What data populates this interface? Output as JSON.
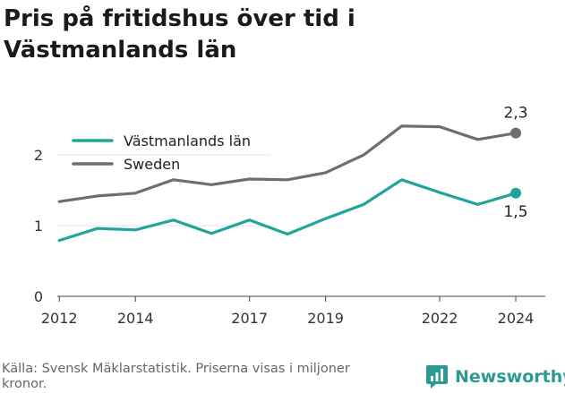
{
  "title_lines": [
    "Pris på fritidshus över tid i",
    "Västmanlands län"
  ],
  "source": "Källa: Svensk Mäklarstatistik. Priserna visas i miljoner kronor.",
  "brand": {
    "name": "Newsworthy",
    "icon": "newsworthy-logo-icon",
    "color": "#2a9a92"
  },
  "chart_data": {
    "type": "line",
    "title": "Pris på fritidshus över tid i Västmanlands län",
    "xlabel": "",
    "ylabel": "",
    "x": [
      2012,
      2013,
      2014,
      2015,
      2016,
      2017,
      2018,
      2019,
      2020,
      2021,
      2022,
      2023,
      2024
    ],
    "x_ticks": [
      2012,
      2014,
      2017,
      2019,
      2022,
      2024
    ],
    "x_tick_labels": [
      "2012",
      "2014",
      "2017",
      "2019",
      "2022",
      "2024"
    ],
    "y_ticks": [
      0,
      1,
      2
    ],
    "y_tick_labels": [
      "0",
      "1",
      "2"
    ],
    "xlim": [
      2011.5,
      2024.8
    ],
    "ylim": [
      0,
      2.8
    ],
    "grid": "horizontal",
    "legend": "top-left",
    "series": [
      {
        "name": "Västmanlands län",
        "color": "#1fa59a",
        "values": [
          0.79,
          0.96,
          0.94,
          1.08,
          0.89,
          1.08,
          0.88,
          1.1,
          1.3,
          1.65,
          1.47,
          1.3,
          1.46
        ],
        "end_label": "1,5"
      },
      {
        "name": "Sweden",
        "color": "#6d6d72",
        "values": [
          1.34,
          1.42,
          1.46,
          1.65,
          1.58,
          1.66,
          1.65,
          1.75,
          2.0,
          2.41,
          2.4,
          2.22,
          2.31
        ],
        "end_label": "2,3"
      }
    ]
  }
}
